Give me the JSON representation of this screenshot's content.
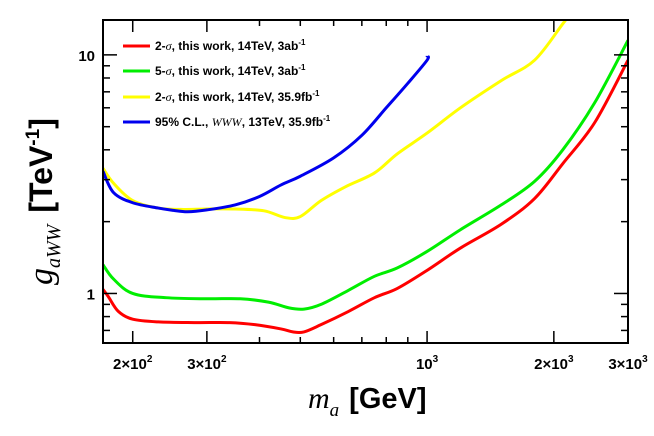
{
  "chart_data": {
    "type": "line",
    "xscale": "log",
    "yscale": "log",
    "xlim": [
      170,
      3000
    ],
    "ylim": [
      0.62,
      14
    ],
    "xlabel": {
      "symbol": "m",
      "subscript": "a",
      "unit": "[GeV]"
    },
    "ylabel": {
      "symbol": "g",
      "subscript": "aWW",
      "unit_prefix": "[TeV",
      "unit_exp": "-1",
      "unit_suffix": "]"
    },
    "x_ticks": [
      {
        "value": 200,
        "mantissa": "2×10",
        "exp": "2"
      },
      {
        "value": 300,
        "mantissa": "3×10",
        "exp": "2"
      },
      {
        "value": 1000,
        "mantissa": "10",
        "exp": "3"
      },
      {
        "value": 2000,
        "mantissa": "2×10",
        "exp": "3"
      },
      {
        "value": 3000,
        "mantissa": "3×10",
        "exp": "3"
      }
    ],
    "y_ticks": [
      {
        "value": 1,
        "label": "1"
      },
      {
        "value": 10,
        "label": "10"
      }
    ],
    "series": [
      {
        "name": "2-σ, this work, 14TeV, 3ab-1",
        "legend": {
          "pre": "2-",
          "greek": "σ",
          "mid": ", this work, 14TeV, 3ab",
          "sup": "-1"
        },
        "color": "#ff0000",
        "points": [
          [
            170,
            1.04
          ],
          [
            175,
            0.97
          ],
          [
            185,
            0.84
          ],
          [
            200,
            0.78
          ],
          [
            230,
            0.76
          ],
          [
            280,
            0.755
          ],
          [
            340,
            0.755
          ],
          [
            390,
            0.74
          ],
          [
            450,
            0.71
          ],
          [
            480,
            0.69
          ],
          [
            510,
            0.69
          ],
          [
            560,
            0.74
          ],
          [
            650,
            0.84
          ],
          [
            750,
            0.96
          ],
          [
            850,
            1.05
          ],
          [
            1000,
            1.25
          ],
          [
            1200,
            1.55
          ],
          [
            1500,
            1.95
          ],
          [
            1800,
            2.5
          ],
          [
            2100,
            3.5
          ],
          [
            2500,
            5.2
          ],
          [
            3000,
            9.5
          ]
        ]
      },
      {
        "name": "5-σ, this work, 14TeV, 3ab-1",
        "legend": {
          "pre": "5-",
          "greek": "σ",
          "mid": ", this work, 14TeV, 3ab",
          "sup": "-1"
        },
        "color": "#00ee00",
        "points": [
          [
            170,
            1.32
          ],
          [
            180,
            1.15
          ],
          [
            200,
            1.0
          ],
          [
            240,
            0.96
          ],
          [
            300,
            0.95
          ],
          [
            360,
            0.95
          ],
          [
            420,
            0.92
          ],
          [
            470,
            0.87
          ],
          [
            510,
            0.86
          ],
          [
            560,
            0.9
          ],
          [
            650,
            1.03
          ],
          [
            750,
            1.18
          ],
          [
            850,
            1.28
          ],
          [
            1000,
            1.5
          ],
          [
            1200,
            1.85
          ],
          [
            1500,
            2.35
          ],
          [
            1800,
            2.95
          ],
          [
            2100,
            4.0
          ],
          [
            2500,
            6.3
          ],
          [
            3000,
            11.5
          ]
        ]
      },
      {
        "name": "2-σ, this work, 14TeV, 35.9fb-1",
        "legend": {
          "pre": "2-",
          "greek": "σ",
          "mid": ", this work, 14TeV, 35.9fb",
          "sup": "-1"
        },
        "color": "#ffff00",
        "points": [
          [
            170,
            3.35
          ],
          [
            180,
            2.9
          ],
          [
            200,
            2.45
          ],
          [
            230,
            2.28
          ],
          [
            260,
            2.25
          ],
          [
            300,
            2.26
          ],
          [
            350,
            2.26
          ],
          [
            410,
            2.22
          ],
          [
            460,
            2.08
          ],
          [
            500,
            2.1
          ],
          [
            560,
            2.45
          ],
          [
            640,
            2.8
          ],
          [
            750,
            3.2
          ],
          [
            850,
            3.85
          ],
          [
            1000,
            4.7
          ],
          [
            1200,
            6.0
          ],
          [
            1500,
            7.8
          ],
          [
            1800,
            9.5
          ],
          [
            2100,
            13.5
          ],
          [
            2200,
            15
          ]
        ]
      },
      {
        "name": "95% C.L., WWW, 13TeV, 35.9fb-1",
        "legend": {
          "pre": "95% C.L., ",
          "italic": "WWW",
          "mid": ", 13TeV, 35.9fb",
          "sup": "-1"
        },
        "color": "#0000ee",
        "points": [
          [
            170,
            3.25
          ],
          [
            180,
            2.65
          ],
          [
            200,
            2.4
          ],
          [
            230,
            2.28
          ],
          [
            250,
            2.23
          ],
          [
            270,
            2.2
          ],
          [
            300,
            2.24
          ],
          [
            350,
            2.35
          ],
          [
            400,
            2.55
          ],
          [
            450,
            2.85
          ],
          [
            500,
            3.1
          ],
          [
            600,
            3.7
          ],
          [
            700,
            4.6
          ],
          [
            800,
            6.0
          ],
          [
            900,
            7.6
          ],
          [
            1000,
            9.5
          ],
          [
            1000,
            9.9
          ]
        ]
      }
    ]
  }
}
